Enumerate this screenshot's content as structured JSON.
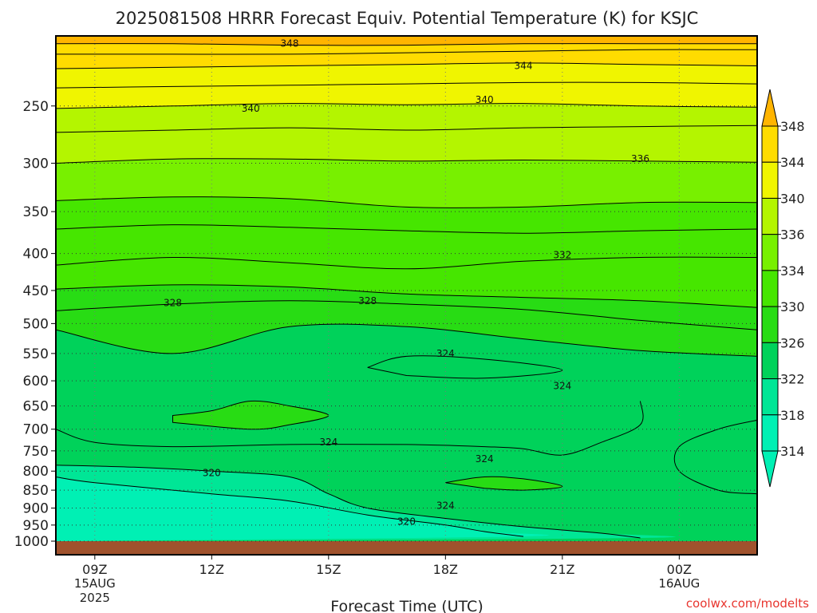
{
  "chart_data": {
    "type": "heatmap",
    "subtype": "time-pressure cross-section with filled contours",
    "title": "2025081508 HRRR Forecast Equiv. Potential Temperature (K) for KSJC",
    "xlabel": "Forecast Time (UTC)",
    "ylabel": "",
    "y_scale": "log-pressure, inverted",
    "ylim": [
      1000,
      200
    ],
    "y_ticks": [
      250,
      300,
      350,
      400,
      450,
      500,
      550,
      600,
      650,
      700,
      750,
      800,
      850,
      900,
      950,
      1000
    ],
    "x_range_hours_utc": [
      "2025-08-15 08Z",
      "2025-08-16 02Z"
    ],
    "x_ticks": [
      {
        "time": "2025-08-15 09Z",
        "label": "09Z",
        "sub1": "15AUG",
        "sub2": "2025"
      },
      {
        "time": "2025-08-15 12Z",
        "label": "12Z",
        "sub1": "",
        "sub2": ""
      },
      {
        "time": "2025-08-15 15Z",
        "label": "15Z",
        "sub1": "",
        "sub2": ""
      },
      {
        "time": "2025-08-15 18Z",
        "label": "18Z",
        "sub1": "",
        "sub2": ""
      },
      {
        "time": "2025-08-15 21Z",
        "label": "21Z",
        "sub1": "",
        "sub2": ""
      },
      {
        "time": "2025-08-16 00Z",
        "label": "00Z",
        "sub1": "16AUG",
        "sub2": ""
      }
    ],
    "grid": true,
    "colorbar": {
      "position": "right",
      "ticks": [
        314,
        318,
        322,
        326,
        330,
        334,
        336,
        340,
        344,
        348
      ],
      "bands": [
        {
          "min": 310,
          "max": 318,
          "color": "#00f0b4"
        },
        {
          "min": 318,
          "max": 322,
          "color": "#00e696"
        },
        {
          "min": 322,
          "max": 326,
          "color": "#00d25a"
        },
        {
          "min": 326,
          "max": 330,
          "color": "#28dc14"
        },
        {
          "min": 330,
          "max": 334,
          "color": "#46e600"
        },
        {
          "min": 334,
          "max": 336,
          "color": "#78f000"
        },
        {
          "min": 336,
          "max": 340,
          "color": "#b4f500"
        },
        {
          "min": 340,
          "max": 344,
          "color": "#f0f500"
        },
        {
          "min": 344,
          "max": 348,
          "color": "#ffdc00"
        },
        {
          "min": 348,
          "max": 352,
          "color": "#ffb400"
        }
      ]
    },
    "ground_color": "#a0522d",
    "isolines": [
      {
        "value": 348,
        "p": [
          205,
          205,
          206,
          206,
          205,
          205,
          205
        ]
      },
      {
        "value": 346,
        "p": [
          212,
          212,
          212,
          211,
          210,
          209,
          209
        ]
      },
      {
        "value": 344,
        "p": [
          222,
          221,
          220,
          219,
          218,
          219,
          220
        ]
      },
      {
        "value": 342,
        "p": [
          236,
          235,
          234,
          233,
          232,
          232,
          233
        ]
      },
      {
        "value": 340,
        "p": [
          252,
          250,
          248,
          249,
          248,
          250,
          251
        ]
      },
      {
        "value": 338,
        "p": [
          272,
          270,
          268,
          270,
          268,
          267,
          266
        ]
      },
      {
        "value": 336,
        "p": [
          300,
          296,
          296,
          298,
          297,
          298,
          299
        ]
      },
      {
        "value": 334,
        "p": [
          338,
          334,
          336,
          345,
          345,
          340,
          340
        ]
      },
      {
        "value": 333,
        "p": [
          370,
          365,
          368,
          372,
          375,
          372,
          370
        ]
      },
      {
        "value": 332,
        "p": [
          415,
          405,
          412,
          420,
          410,
          405,
          405
        ]
      },
      {
        "value": 330,
        "p": [
          448,
          442,
          445,
          455,
          460,
          465,
          475
        ]
      },
      {
        "value": 328,
        "p": [
          480,
          470,
          465,
          470,
          478,
          495,
          510
        ]
      },
      {
        "value": 326,
        "p": [
          510,
          550,
          505,
          505,
          525,
          545,
          555
        ]
      }
    ],
    "contour_labels": [
      {
        "text": "348",
        "time": "2025-08-15 14Z",
        "p": 205
      },
      {
        "text": "344",
        "time": "2025-08-15 20Z",
        "p": 220
      },
      {
        "text": "340",
        "time": "2025-08-15 13Z",
        "p": 252
      },
      {
        "text": "340",
        "time": "2025-08-15 19Z",
        "p": 245
      },
      {
        "text": "336",
        "time": "2025-08-15 23Z",
        "p": 296
      },
      {
        "text": "332",
        "time": "2025-08-15 21Z",
        "p": 402
      },
      {
        "text": "328",
        "time": "2025-08-15 11Z",
        "p": 468
      },
      {
        "text": "328",
        "time": "2025-08-15 16Z",
        "p": 465
      },
      {
        "text": "324",
        "time": "2025-08-15 18Z",
        "p": 550
      },
      {
        "text": "324",
        "time": "2025-08-15 21Z",
        "p": 610
      },
      {
        "text": "324",
        "time": "2025-08-15 15Z",
        "p": 730
      },
      {
        "text": "324",
        "time": "2025-08-15 19Z",
        "p": 770
      },
      {
        "text": "324",
        "time": "2025-08-15 18Z",
        "p": 893
      },
      {
        "text": "320",
        "time": "2025-08-15 12Z",
        "p": 805
      },
      {
        "text": "320",
        "time": "2025-08-15 17Z",
        "p": 940
      }
    ]
  },
  "credit": "coolwx.com/modelts"
}
